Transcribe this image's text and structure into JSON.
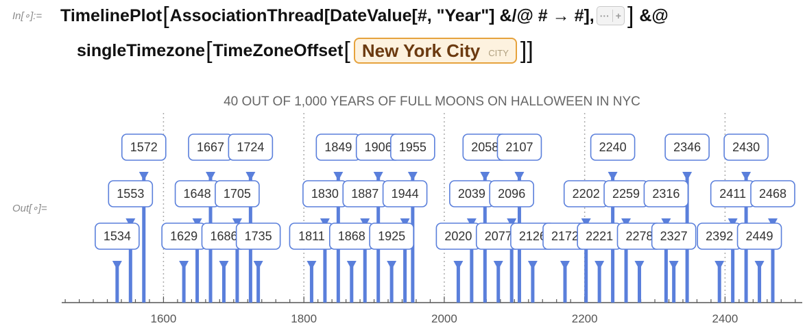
{
  "input_label": "In[∘]:=",
  "output_label": "Out[∘]=",
  "code": {
    "line1_func": "TimelinePlot",
    "line1_args": "AssociationThread[DateValue[#, \"Year\"] &/@ # → #],",
    "line1_tail": "&@",
    "elided_dots": "···",
    "elided_plus": "+",
    "line2_a": "singleTimezone",
    "line2_b": "TimeZoneOffset",
    "entity_name": "New York City",
    "entity_type": "CITY"
  },
  "chart_data": {
    "type": "timeline",
    "title": "40 OUT OF 1,000 YEARS OF FULL MOONS ON HALLOWEEN IN NYC",
    "xlim": [
      1455,
      2510
    ],
    "major_ticks": [
      1600,
      1800,
      2000,
      2200,
      2400
    ],
    "minor_tick_step": 20,
    "grid": "dotted vertical lines at major ticks",
    "events": [
      {
        "year": 1534,
        "label": "1534",
        "tier": 0
      },
      {
        "year": 1553,
        "label": "1553",
        "tier": 1
      },
      {
        "year": 1572,
        "label": "1572",
        "tier": 2
      },
      {
        "year": 1629,
        "label": "1629",
        "tier": 0
      },
      {
        "year": 1648,
        "label": "1648",
        "tier": 1
      },
      {
        "year": 1667,
        "label": "1667",
        "tier": 2
      },
      {
        "year": 1686,
        "label": "1686",
        "tier": 0
      },
      {
        "year": 1705,
        "label": "1705",
        "tier": 1
      },
      {
        "year": 1724,
        "label": "1724",
        "tier": 2
      },
      {
        "year": 1735,
        "label": "1735",
        "tier": 0
      },
      {
        "year": 1811,
        "label": "1811",
        "tier": 0
      },
      {
        "year": 1830,
        "label": "1830",
        "tier": 1
      },
      {
        "year": 1849,
        "label": "1849",
        "tier": 2
      },
      {
        "year": 1868,
        "label": "1868",
        "tier": 0
      },
      {
        "year": 1887,
        "label": "1887",
        "tier": 1
      },
      {
        "year": 1906,
        "label": "1906",
        "tier": 2
      },
      {
        "year": 1925,
        "label": "1925",
        "tier": 0
      },
      {
        "year": 1944,
        "label": "1944",
        "tier": 1
      },
      {
        "year": 1955,
        "label": "1955",
        "tier": 2
      },
      {
        "year": 2020,
        "label": "2020",
        "tier": 0
      },
      {
        "year": 2039,
        "label": "2039",
        "tier": 1
      },
      {
        "year": 2058,
        "label": "2058",
        "tier": 2
      },
      {
        "year": 2077,
        "label": "2077",
        "tier": 0
      },
      {
        "year": 2096,
        "label": "2096",
        "tier": 1
      },
      {
        "year": 2107,
        "label": "2107",
        "tier": 2
      },
      {
        "year": 2126,
        "label": "2126",
        "tier": 0
      },
      {
        "year": 2172,
        "label": "2172",
        "tier": 0
      },
      {
        "year": 2202,
        "label": "2202",
        "tier": 1
      },
      {
        "year": 2221,
        "label": "2221",
        "tier": 0
      },
      {
        "year": 2240,
        "label": "2240",
        "tier": 2
      },
      {
        "year": 2259,
        "label": "2259",
        "tier": 1
      },
      {
        "year": 2278,
        "label": "2278",
        "tier": 0
      },
      {
        "year": 2316,
        "label": "2316",
        "tier": 1
      },
      {
        "year": 2327,
        "label": "2327",
        "tier": 0
      },
      {
        "year": 2346,
        "label": "2346",
        "tier": 2
      },
      {
        "year": 2392,
        "label": "2392",
        "tier": 0
      },
      {
        "year": 2411,
        "label": "2411",
        "tier": 1
      },
      {
        "year": 2430,
        "label": "2430",
        "tier": 2
      },
      {
        "year": 2449,
        "label": "2449",
        "tier": 0
      },
      {
        "year": 2468,
        "label": "2468",
        "tier": 1
      }
    ]
  },
  "colors": {
    "event_blue": "#5a7fdb",
    "box_border": "#5a7fdb",
    "axis": "#555555",
    "grid": "#aaaaaa",
    "title": "#666666",
    "entity_border": "#e6a23c"
  }
}
